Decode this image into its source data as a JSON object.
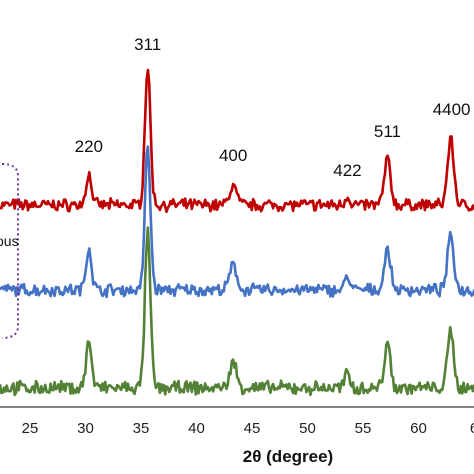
{
  "chart_data": {
    "type": "line",
    "xlabel": "2θ (degree)",
    "ylabel": "",
    "xlim": [
      22.3,
      65.5
    ],
    "x_ticks": [
      "25",
      "30",
      "35",
      "40",
      "45",
      "50",
      "55",
      "60",
      "6"
    ],
    "side_label": "ous",
    "peak_labels": [
      {
        "text": "220",
        "x": 30.3
      },
      {
        "text": "311",
        "x": 35.6
      },
      {
        "text": "400",
        "x": 43.3
      },
      {
        "text": "422",
        "x": 53.6
      },
      {
        "text": "511",
        "x": 57.2
      },
      {
        "text": "4400",
        "x": 62.9
      }
    ],
    "peaks": [
      {
        "x": 30.3,
        "w": 0.35,
        "rel": [
          0.22,
          0.3,
          0.3
        ]
      },
      {
        "x": 35.6,
        "w": 0.35,
        "rel": [
          1.0,
          1.0,
          1.0
        ]
      },
      {
        "x": 43.3,
        "w": 0.45,
        "rel": [
          0.14,
          0.17,
          0.16
        ]
      },
      {
        "x": 53.6,
        "w": 0.35,
        "rel": [
          0.06,
          0.09,
          0.09
        ]
      },
      {
        "x": 57.2,
        "w": 0.4,
        "rel": [
          0.33,
          0.28,
          0.28
        ]
      },
      {
        "x": 62.9,
        "w": 0.4,
        "rel": [
          0.48,
          0.38,
          0.36
        ]
      }
    ],
    "series": [
      {
        "color": "#c00000"
      },
      {
        "color": "#4472c4"
      },
      {
        "color": "#538135"
      }
    ]
  }
}
